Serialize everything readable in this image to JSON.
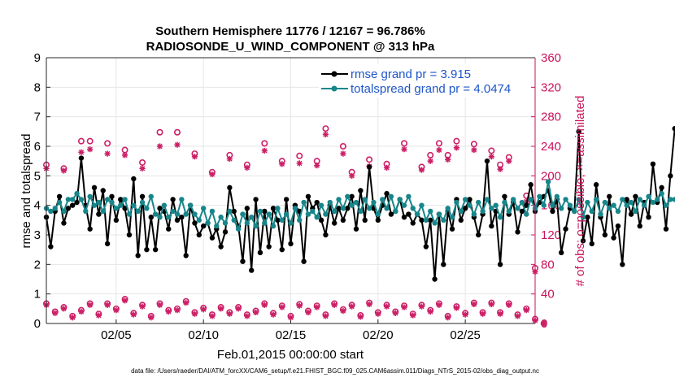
{
  "chart_data": {
    "type": "line",
    "title": "Southern Hemisphere 11776 / 12167 = 96.786%",
    "subtitle": "RADIOSONDE_U_WIND_COMPONENT @ 313 hPa",
    "xlabel": "Feb.01,2015 00:00:00 start",
    "ylabel": "rmse and totalspread",
    "y2label": "# of obs: o=possible; ×=assimilated",
    "xlim": [
      1,
      29
    ],
    "ylim": [
      0,
      9
    ],
    "y2lim": [
      0,
      360
    ],
    "yticks": [
      "0",
      "1",
      "2",
      "3",
      "4",
      "5",
      "6",
      "7",
      "8",
      "9"
    ],
    "y2ticks": [
      "0",
      "40",
      "80",
      "120",
      "160",
      "200",
      "240",
      "280",
      "320",
      "360"
    ],
    "xticks": [
      {
        "x": 5,
        "label": "02/05"
      },
      {
        "x": 10,
        "label": "02/10"
      },
      {
        "x": 15,
        "label": "02/15"
      },
      {
        "x": 20,
        "label": "02/20"
      },
      {
        "x": 25,
        "label": "02/25"
      }
    ],
    "legend": {
      "position": "top-right",
      "entries": [
        "rmse grand pr = 3.915",
        "totalspread grand pr = 4.0474"
      ]
    },
    "colors": {
      "rmse": "#000000",
      "totalspread": "#17868a",
      "obs": "#cc1f66",
      "legend_text": "#1f56c8",
      "right_axis": "#c8145a"
    },
    "x_start": 1.0,
    "x_step": 0.25,
    "series": [
      {
        "name": "rmse",
        "axis": "left",
        "values": [
          3.6,
          2.6,
          3.8,
          4.3,
          3.4,
          3.9,
          4.0,
          4.1,
          5.6,
          4.0,
          3.2,
          4.6,
          3.7,
          4.5,
          2.7,
          4.3,
          3.5,
          4.2,
          3.9,
          3.0,
          4.9,
          2.3,
          4.3,
          2.5,
          3.6,
          2.5,
          3.9,
          3.8,
          3.2,
          4.2,
          3.5,
          3.6,
          2.3,
          4.0,
          3.4,
          3.0,
          3.3,
          3.4,
          2.9,
          3.2,
          2.6,
          3.1,
          4.6,
          3.8,
          3.3,
          2.1,
          3.9,
          1.8,
          4.2,
          2.4,
          3.8,
          2.6,
          3.9,
          3.5,
          2.5,
          4.2,
          2.7,
          4.0,
          3.8,
          2.1,
          4.3,
          3.9,
          4.1,
          3.5,
          3.0,
          4.0,
          3.4,
          3.9,
          3.5,
          3.9,
          4.3,
          3.2,
          4.5,
          3.5,
          5.3,
          3.9,
          3.5,
          4.0,
          4.4,
          3.7,
          3.8,
          4.2,
          3.6,
          3.7,
          3.4,
          3.7,
          3.5,
          2.6,
          3.5,
          1.5,
          3.7,
          2.0,
          3.8,
          3.2,
          4.2,
          3.5,
          3.9,
          4.2,
          3.6,
          3.0,
          3.7,
          5.5,
          3.3,
          3.8,
          2.0,
          4.3,
          3.7,
          4.1,
          3.1,
          3.8,
          4.0,
          4.7,
          3.8,
          4.1,
          4.3,
          4.5,
          3.8,
          4.2,
          2.4,
          3.2,
          3.9,
          3.8,
          6.5,
          2.8,
          3.6,
          2.7,
          4.7,
          3.6,
          3.0,
          4.3,
          2.9,
          3.3,
          2.0,
          4.2,
          3.7,
          4.3,
          3.3,
          4.1,
          3.6,
          5.4,
          4.1,
          4.6,
          3.2,
          5.0,
          6.6
        ]
      },
      {
        "name": "totalspread",
        "axis": "left",
        "values": [
          3.9,
          3.8,
          3.9,
          4.1,
          3.8,
          4.2,
          4.2,
          4.4,
          4.2,
          3.8,
          4.3,
          4.0,
          4.1,
          3.8,
          4.2,
          4.1,
          3.9,
          4.0,
          4.2,
          3.7,
          4.0,
          3.8,
          4.1,
          3.9,
          4.3,
          3.7,
          3.6,
          4.0,
          3.6,
          3.8,
          3.7,
          4.2,
          3.7,
          4.0,
          3.7,
          3.5,
          3.9,
          3.4,
          3.8,
          3.3,
          3.6,
          3.4,
          3.8,
          3.5,
          3.2,
          3.7,
          3.4,
          3.6,
          3.3,
          3.8,
          3.4,
          3.7,
          3.3,
          3.9,
          3.5,
          3.7,
          3.4,
          3.9,
          3.5,
          4.1,
          3.7,
          3.8,
          3.6,
          4.0,
          3.7,
          4.1,
          3.8,
          4.2,
          3.9,
          4.3,
          4.0,
          4.1,
          3.8,
          4.2,
          3.9,
          4.1,
          3.7,
          4.2,
          3.9,
          4.3,
          3.8,
          4.2,
          4.0,
          4.3,
          3.9,
          3.7,
          4.0,
          3.5,
          3.8,
          3.4,
          3.7,
          3.5,
          3.9,
          3.6,
          4.1,
          3.8,
          4.2,
          4.0,
          3.7,
          4.1,
          3.8,
          4.2,
          3.9,
          4.0,
          3.6,
          4.1,
          3.8,
          4.2,
          3.9,
          4.1,
          3.7,
          4.2,
          3.9,
          4.3,
          4.0,
          4.8,
          4.0,
          4.3,
          3.9,
          4.2,
          4.0,
          3.8,
          4.2,
          3.6,
          4.1,
          3.8,
          4.2,
          3.7,
          4.1,
          3.9,
          4.0,
          3.8,
          4.2,
          4.0,
          4.1,
          3.8,
          4.2,
          4.0,
          4.3,
          4.1,
          4.2,
          4.4,
          4.0,
          4.2,
          4.2
        ]
      },
      {
        "name": "possible",
        "axis": "right",
        "marker": "o",
        "points": [
          [
            1.0,
            215
          ],
          [
            2.0,
            210
          ],
          [
            3.0,
            247
          ],
          [
            3.5,
            247
          ],
          [
            4.5,
            244
          ],
          [
            5.5,
            235
          ],
          [
            6.5,
            218
          ],
          [
            7.5,
            259
          ],
          [
            8.5,
            259
          ],
          [
            9.5,
            230
          ],
          [
            10.5,
            205
          ],
          [
            11.5,
            228
          ],
          [
            12.5,
            215
          ],
          [
            13.5,
            244
          ],
          [
            14.5,
            220
          ],
          [
            15.5,
            227
          ],
          [
            16.5,
            220
          ],
          [
            17.0,
            264
          ],
          [
            18.0,
            240
          ],
          [
            18.5,
            205
          ],
          [
            19.5,
            222
          ],
          [
            20.5,
            216
          ],
          [
            21.5,
            244
          ],
          [
            22.5,
            212
          ],
          [
            23.0,
            228
          ],
          [
            23.5,
            244
          ],
          [
            24.0,
            228
          ],
          [
            24.5,
            247
          ],
          [
            25.5,
            243
          ],
          [
            26.5,
            234
          ],
          [
            27.0,
            215
          ],
          [
            27.5,
            225
          ],
          [
            28.5,
            173
          ],
          [
            29.0,
            75
          ]
        ]
      },
      {
        "name": "assimilated",
        "axis": "right",
        "marker": "x",
        "points": [
          [
            1.0,
            210
          ],
          [
            2.0,
            207
          ],
          [
            3.0,
            232
          ],
          [
            3.5,
            236
          ],
          [
            4.5,
            230
          ],
          [
            5.5,
            228
          ],
          [
            6.5,
            210
          ],
          [
            7.5,
            240
          ],
          [
            8.5,
            242
          ],
          [
            9.5,
            226
          ],
          [
            10.5,
            202
          ],
          [
            11.5,
            223
          ],
          [
            12.5,
            211
          ],
          [
            13.5,
            234
          ],
          [
            14.5,
            216
          ],
          [
            15.5,
            217
          ],
          [
            16.5,
            214
          ],
          [
            17.0,
            256
          ],
          [
            18.0,
            230
          ],
          [
            18.5,
            200
          ],
          [
            19.5,
            213
          ],
          [
            20.5,
            211
          ],
          [
            21.5,
            236
          ],
          [
            22.5,
            208
          ],
          [
            23.0,
            220
          ],
          [
            23.5,
            235
          ],
          [
            24.0,
            222
          ],
          [
            24.5,
            238
          ],
          [
            25.5,
            235
          ],
          [
            26.5,
            226
          ],
          [
            27.0,
            209
          ],
          [
            27.5,
            220
          ],
          [
            28.5,
            165
          ],
          [
            29.0,
            70
          ]
        ]
      },
      {
        "name": "possible_low",
        "axis": "right",
        "marker": "o",
        "start": 1.0,
        "step": 0.5,
        "values": [
          27,
          16,
          22,
          10,
          18,
          27,
          13,
          27,
          20,
          33,
          14,
          25,
          10,
          27,
          18,
          20,
          30,
          15,
          21,
          12,
          22,
          15,
          22,
          12,
          17,
          27,
          14,
          24,
          10,
          26,
          17,
          24,
          12,
          27,
          19,
          25,
          11,
          28,
          15,
          25,
          16,
          24,
          13,
          25,
          18,
          27,
          10,
          23,
          14,
          28,
          15,
          28,
          15,
          27,
          12,
          20,
          6,
          0
        ]
      },
      {
        "name": "assimilated_low",
        "axis": "right",
        "marker": "x",
        "start": 1.0,
        "step": 0.5,
        "values": [
          25,
          14,
          20,
          8,
          16,
          25,
          11,
          25,
          18,
          31,
          12,
          23,
          8,
          25,
          16,
          18,
          28,
          13,
          19,
          10,
          20,
          13,
          20,
          10,
          15,
          25,
          12,
          22,
          8,
          24,
          15,
          22,
          10,
          25,
          17,
          23,
          9,
          26,
          13,
          23,
          14,
          22,
          11,
          23,
          16,
          25,
          8,
          21,
          12,
          26,
          13,
          26,
          13,
          25,
          10,
          18,
          4,
          0
        ]
      }
    ]
  },
  "footer": "data file: /Users/raeder/DAI/ATM_forcXX/CAM6_setup/f.e21.FHIST_BGC.f09_025.CAM6assim.011/Diags_NTrS_2015-02/obs_diag_output.nc"
}
